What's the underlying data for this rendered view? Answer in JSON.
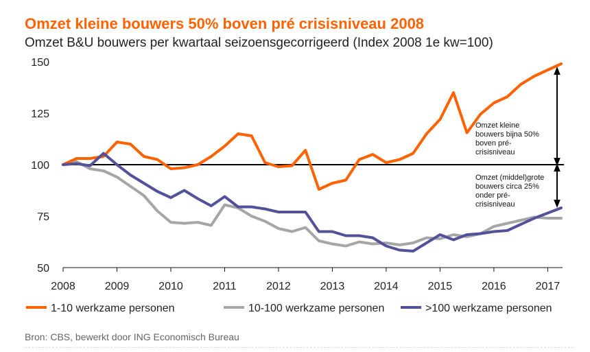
{
  "header": {
    "title": "Omzet kleine bouwers 50% boven pré crisisniveau 2008",
    "subtitle": "Omzet B&U bouwers per kwartaal seizoensgecorrigeerd (Index 2008 1e kw=100)"
  },
  "footer": {
    "source": "Bron: CBS, bewerkt door ING Economisch Bureau"
  },
  "chart_data": {
    "type": "line",
    "title": "Omzet kleine bouwers 50% boven pré crisisniveau 2008",
    "subtitle": "Omzet B&U bouwers per kwartaal seizoensgecorrigeerd (Index 2008 1e kw=100)",
    "xlabel": "",
    "ylabel": "",
    "ylim": [
      50,
      150
    ],
    "yticks": [
      50,
      75,
      100,
      125,
      150
    ],
    "xlim": [
      2008,
      2017.25
    ],
    "xticks": [
      "2008",
      "2009",
      "2010",
      "2011",
      "2012",
      "2013",
      "2014",
      "2015",
      "2016",
      "2017"
    ],
    "grid": false,
    "reference_line": 100,
    "legend": "bottom",
    "x": [
      "2008 Q1",
      "2008 Q2",
      "2008 Q3",
      "2008 Q4",
      "2009 Q1",
      "2009 Q2",
      "2009 Q3",
      "2009 Q4",
      "2010 Q1",
      "2010 Q2",
      "2010 Q3",
      "2010 Q4",
      "2011 Q1",
      "2011 Q2",
      "2011 Q3",
      "2011 Q4",
      "2012 Q1",
      "2012 Q2",
      "2012 Q3",
      "2012 Q4",
      "2013 Q1",
      "2013 Q2",
      "2013 Q3",
      "2013 Q4",
      "2014 Q1",
      "2014 Q2",
      "2014 Q3",
      "2014 Q4",
      "2015 Q1",
      "2015 Q2",
      "2015 Q3",
      "2015 Q4",
      "2016 Q1",
      "2016 Q2",
      "2016 Q3",
      "2016 Q4",
      "2017 Q1",
      "2017 Q2"
    ],
    "series": [
      {
        "name": "1-10 werkzame personen",
        "color": "#ff6200",
        "values": [
          100,
          103,
          103,
          104,
          111,
          110,
          104,
          102.5,
          98,
          98.5,
          100,
          104,
          109,
          115,
          114,
          101,
          99,
          99.5,
          107,
          88,
          91,
          92.5,
          102.5,
          105,
          101,
          102.5,
          105.5,
          115,
          122,
          135,
          115.5,
          124.5,
          130,
          133,
          139,
          143,
          146,
          149
        ]
      },
      {
        "name": "10-100 werkzame personen",
        "color": "#a6a6a6",
        "values": [
          100,
          101.5,
          98,
          97,
          94,
          89.5,
          85,
          77.5,
          72,
          71.5,
          72,
          70.5,
          80.5,
          79,
          75,
          72.5,
          69,
          67.5,
          69.5,
          63,
          61.5,
          60.5,
          62.5,
          61.5,
          62,
          61,
          62,
          64.5,
          64,
          66,
          65,
          66.5,
          70,
          71.5,
          73,
          74.5,
          74,
          74
        ]
      },
      {
        "name": ">100 werkzame personen",
        "color": "#525199",
        "values": [
          100,
          100.5,
          99.5,
          105.5,
          100,
          95,
          91,
          87,
          84,
          87.5,
          83.5,
          80,
          84.5,
          79.5,
          79.5,
          78.5,
          77,
          77,
          77,
          67.5,
          67.5,
          65.5,
          65.5,
          64.5,
          60.5,
          58.5,
          58,
          62,
          66,
          63.5,
          66,
          66.5,
          67.5,
          68,
          71,
          74,
          76.5,
          79
        ]
      }
    ],
    "annotations": [
      {
        "lines": [
          "Omzet kleine",
          "bouwers bijna 50%",
          "boven pré-",
          "crisisniveau"
        ]
      },
      {
        "lines": [
          "Omzet (middel)grote",
          "bouwers circa 25%",
          "onder pré-",
          "crisisniveau"
        ]
      }
    ]
  }
}
